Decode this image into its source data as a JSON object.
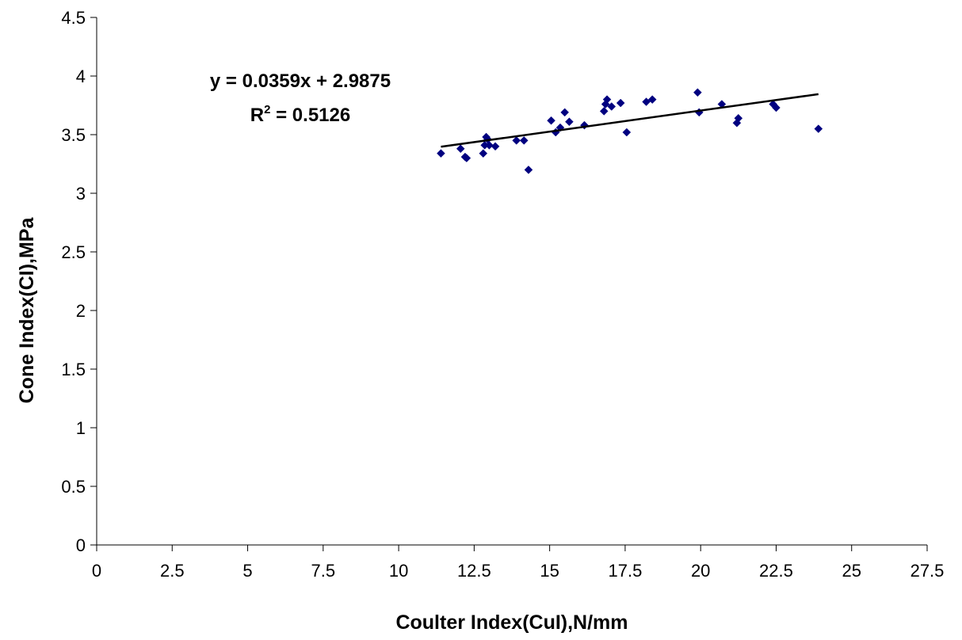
{
  "chart_data": {
    "type": "scatter",
    "title": "",
    "xlabel": "Coulter Index(CuI),N/mm",
    "ylabel": "Cone Index(CI),MPa",
    "xlim": [
      0,
      27.5
    ],
    "ylim": [
      0,
      4.5
    ],
    "xticks": [
      0,
      2.5,
      5,
      7.5,
      10,
      12.5,
      15,
      17.5,
      20,
      22.5,
      25,
      27.5
    ],
    "xtick_labels": [
      "0",
      "2.5",
      "5",
      "7.5",
      "10",
      "12.5",
      "15",
      "17.5",
      "20",
      "22.5",
      "25",
      "27.5"
    ],
    "yticks": [
      0,
      0.5,
      1,
      1.5,
      2,
      2.5,
      3,
      3.5,
      4,
      4.5
    ],
    "ytick_labels": [
      "0",
      "0.5",
      "1",
      "1.5",
      "2",
      "2.5",
      "3",
      "3.5",
      "4",
      "4.5"
    ],
    "grid": false,
    "legend": "none",
    "marker_color": "#000080",
    "trendline": {
      "slope": 0.0359,
      "intercept": 2.9875,
      "x_range": [
        11.4,
        23.9
      ],
      "color": "#000000",
      "equation_label": "y = 0.0359x + 2.9875",
      "r2_prefix": "R",
      "r2_sup": "2",
      "r2_suffix": " = 0.5126"
    },
    "series": [
      {
        "x": [
          11.4,
          12.05,
          12.2,
          12.25,
          12.8,
          12.85,
          12.9,
          12.95,
          13.0,
          13.2,
          13.9,
          14.15,
          14.3,
          15.05,
          15.2,
          15.35,
          15.5,
          15.65,
          16.15,
          16.8,
          16.85,
          16.9,
          17.05,
          17.35,
          17.55,
          18.2,
          18.4,
          19.9,
          19.95,
          20.7,
          21.2,
          21.25,
          22.4,
          22.5,
          23.9
        ],
        "y": [
          3.34,
          3.38,
          3.31,
          3.3,
          3.34,
          3.41,
          3.48,
          3.46,
          3.41,
          3.4,
          3.45,
          3.45,
          3.2,
          3.62,
          3.52,
          3.56,
          3.69,
          3.61,
          3.58,
          3.7,
          3.76,
          3.8,
          3.74,
          3.77,
          3.52,
          3.78,
          3.8,
          3.86,
          3.69,
          3.76,
          3.6,
          3.64,
          3.76,
          3.73,
          3.55
        ]
      }
    ]
  }
}
